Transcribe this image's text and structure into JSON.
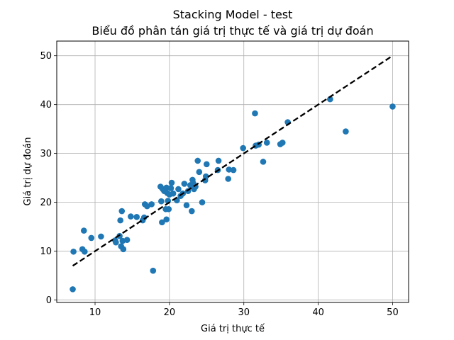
{
  "chart_data": {
    "type": "scatter",
    "title_line1": "Stacking Model - test",
    "title_line2": "Biểu đồ phân tán giá trị thực tế và giá trị dự đoán",
    "xlabel": "Giá trị thực tế",
    "ylabel": "Giá trị dự đoán",
    "xlim": [
      4.85,
      52.15
    ],
    "ylim": [
      -0.5,
      53
    ],
    "xticks": [
      10,
      20,
      30,
      40,
      50
    ],
    "yticks": [
      0,
      10,
      20,
      30,
      40,
      50
    ],
    "grid": true,
    "point_color": "#1f77b4",
    "reference_line": {
      "x": [
        7,
        50
      ],
      "y": [
        7,
        50
      ],
      "style": "dashed",
      "color": "#000000"
    },
    "points": [
      [
        7.0,
        2.2
      ],
      [
        7.1,
        9.9
      ],
      [
        8.3,
        10.4
      ],
      [
        8.5,
        14.2
      ],
      [
        8.6,
        9.9
      ],
      [
        9.5,
        12.7
      ],
      [
        10.8,
        13.0
      ],
      [
        12.7,
        12.2
      ],
      [
        12.8,
        11.8
      ],
      [
        13.3,
        13.1
      ],
      [
        13.4,
        16.3
      ],
      [
        13.5,
        11.0
      ],
      [
        13.6,
        18.2
      ],
      [
        13.7,
        12.1
      ],
      [
        13.8,
        10.4
      ],
      [
        14.3,
        12.3
      ],
      [
        14.8,
        17.1
      ],
      [
        15.6,
        17.0
      ],
      [
        16.4,
        16.3
      ],
      [
        16.6,
        16.9
      ],
      [
        16.7,
        19.6
      ],
      [
        17.0,
        19.2
      ],
      [
        17.6,
        19.6
      ],
      [
        17.8,
        6.0
      ],
      [
        18.8,
        23.2
      ],
      [
        18.9,
        20.2
      ],
      [
        19.0,
        15.9
      ],
      [
        19.1,
        22.7
      ],
      [
        19.3,
        22.3
      ],
      [
        19.5,
        18.6
      ],
      [
        19.6,
        16.5
      ],
      [
        19.6,
        23.0
      ],
      [
        19.7,
        21.9
      ],
      [
        19.8,
        20.3
      ],
      [
        19.9,
        18.6
      ],
      [
        20.0,
        21.6
      ],
      [
        20.2,
        22.9
      ],
      [
        20.3,
        24.0
      ],
      [
        20.5,
        21.8
      ],
      [
        21.0,
        20.4
      ],
      [
        21.2,
        22.7
      ],
      [
        21.5,
        21.3
      ],
      [
        21.8,
        21.8
      ],
      [
        22.0,
        23.8
      ],
      [
        22.3,
        19.4
      ],
      [
        22.5,
        22.3
      ],
      [
        22.8,
        23.5
      ],
      [
        23.0,
        18.2
      ],
      [
        23.1,
        24.6
      ],
      [
        23.2,
        23.9
      ],
      [
        23.3,
        22.7
      ],
      [
        23.5,
        23.2
      ],
      [
        23.8,
        28.5
      ],
      [
        24.0,
        26.2
      ],
      [
        24.4,
        20.0
      ],
      [
        24.8,
        24.5
      ],
      [
        24.9,
        25.3
      ],
      [
        25.0,
        27.8
      ],
      [
        26.5,
        26.6
      ],
      [
        26.6,
        28.5
      ],
      [
        27.9,
        24.8
      ],
      [
        28.0,
        26.7
      ],
      [
        28.6,
        26.6
      ],
      [
        29.9,
        31.1
      ],
      [
        31.5,
        38.2
      ],
      [
        31.6,
        31.6
      ],
      [
        32.0,
        31.8
      ],
      [
        32.6,
        28.3
      ],
      [
        33.1,
        32.2
      ],
      [
        34.9,
        31.9
      ],
      [
        35.2,
        32.2
      ],
      [
        35.9,
        36.4
      ],
      [
        41.6,
        41.1
      ],
      [
        43.7,
        34.5
      ],
      [
        50.0,
        39.6
      ]
    ]
  }
}
